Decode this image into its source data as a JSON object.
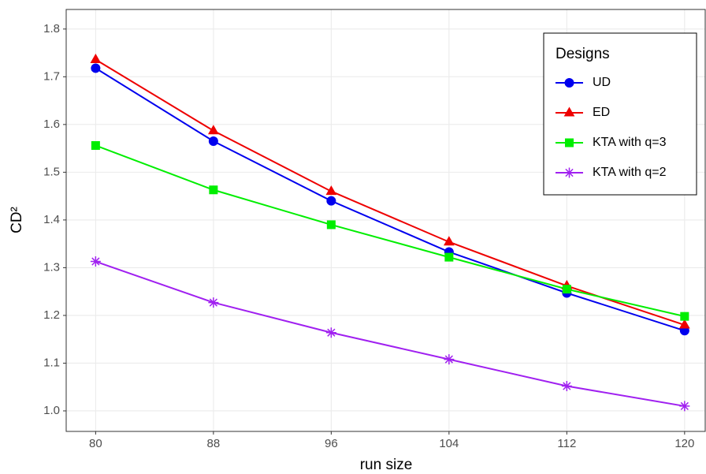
{
  "chart_data": {
    "type": "line",
    "x_label": "run size",
    "y_label": "CD²",
    "x": [
      80,
      88,
      96,
      104,
      112,
      120
    ],
    "series": [
      {
        "name": "UD",
        "color": "#0000ee",
        "marker": "circle",
        "values": [
          1.718,
          1.565,
          1.44,
          1.333,
          1.247,
          1.168
        ]
      },
      {
        "name": "ED",
        "color": "#ee0000",
        "marker": "triangle",
        "values": [
          1.736,
          1.587,
          1.46,
          1.354,
          1.262,
          1.18
        ]
      },
      {
        "name": "KTA with q=3",
        "color": "#00ee00",
        "marker": "square",
        "values": [
          1.556,
          1.463,
          1.39,
          1.322,
          1.255,
          1.198
        ]
      },
      {
        "name": "KTA with q=2",
        "color": "#a020f0",
        "marker": "asterisk",
        "values": [
          1.313,
          1.227,
          1.164,
          1.108,
          1.052,
          1.01
        ]
      }
    ],
    "legend_title": "Designs",
    "legend_position": "top-right",
    "xlim": [
      78,
      121.4
    ],
    "xticks": [
      80,
      88,
      96,
      104,
      112,
      120
    ],
    "ylim": [
      0.957,
      1.841
    ],
    "yticks": [
      {
        "value": 1.0,
        "label": "1.0"
      },
      1.1,
      1.2,
      1.3,
      1.4,
      1.5,
      1.6,
      1.7,
      1.8
    ],
    "grid": true
  }
}
